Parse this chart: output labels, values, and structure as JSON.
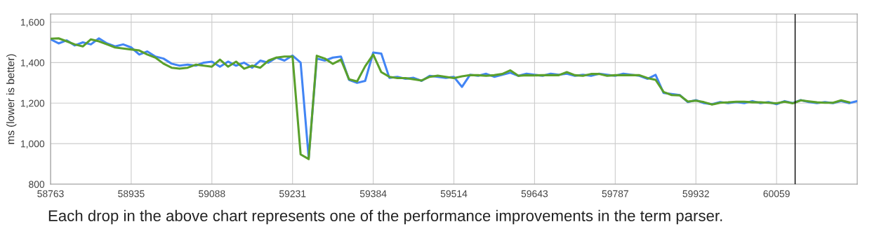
{
  "chart_data": {
    "type": "line",
    "ylabel": "ms (lower is better)",
    "annotations": [
      "Each drop in the above chart represents one of the performance improvements in the term parser."
    ],
    "categories": [
      "58763",
      null,
      null,
      null,
      null,
      null,
      null,
      null,
      null,
      null,
      "58935",
      null,
      null,
      null,
      null,
      null,
      null,
      null,
      null,
      null,
      "59088",
      null,
      null,
      null,
      null,
      null,
      null,
      null,
      null,
      null,
      "59231",
      null,
      null,
      null,
      null,
      null,
      null,
      null,
      null,
      null,
      "59384",
      null,
      null,
      null,
      null,
      null,
      null,
      null,
      null,
      null,
      "59514",
      null,
      null,
      null,
      null,
      null,
      null,
      null,
      null,
      null,
      "59643",
      null,
      null,
      null,
      null,
      null,
      null,
      null,
      null,
      null,
      "59787",
      null,
      null,
      null,
      null,
      null,
      null,
      null,
      null,
      null,
      "59932",
      null,
      null,
      null,
      null,
      null,
      null,
      null,
      null,
      null,
      "60059",
      null,
      null,
      null,
      null,
      null,
      null,
      null,
      null,
      null,
      null
    ],
    "series": [
      {
        "color": "#4285f4",
        "values": [
          1515,
          1495,
          1510,
          1485,
          1500,
          1490,
          1520,
          1495,
          1480,
          1490,
          1475,
          1440,
          1455,
          1430,
          1420,
          1395,
          1385,
          1390,
          1385,
          1400,
          1405,
          1380,
          1405,
          1385,
          1400,
          1375,
          1410,
          1400,
          1425,
          1410,
          1435,
          1400,
          930,
          1420,
          1410,
          1425,
          1430,
          1315,
          1300,
          1310,
          1450,
          1445,
          1325,
          1330,
          1320,
          1325,
          1310,
          1335,
          1330,
          1325,
          1330,
          1280,
          1340,
          1335,
          1345,
          1330,
          1340,
          1350,
          1335,
          1345,
          1340,
          1335,
          1345,
          1340,
          1345,
          1335,
          1340,
          1335,
          1345,
          1340,
          1335,
          1345,
          1340,
          1335,
          1320,
          1340,
          1250,
          1245,
          1240,
          1205,
          1215,
          1200,
          1195,
          1205,
          1200,
          1205,
          1200,
          1210,
          1200,
          1205,
          1195,
          1210,
          1200,
          1215,
          1205,
          1200,
          1205,
          1200,
          1210,
          1200,
          1210
        ]
      },
      {
        "color": "#5aa02c",
        "values": [
          1518,
          1520,
          1505,
          1490,
          1480,
          1515,
          1505,
          1490,
          1475,
          1470,
          1465,
          1460,
          1440,
          1425,
          1395,
          1375,
          1370,
          1375,
          1390,
          1385,
          1380,
          1415,
          1380,
          1405,
          1370,
          1385,
          1375,
          1410,
          1425,
          1430,
          1430,
          947,
          924,
          1434,
          1420,
          1394,
          1415,
          1318,
          1307,
          1382,
          1440,
          1353,
          1330,
          1324,
          1324,
          1318,
          1312,
          1330,
          1336,
          1330,
          1324,
          1332,
          1338,
          1338,
          1335,
          1338,
          1344,
          1362,
          1335,
          1338,
          1337,
          1338,
          1338,
          1338,
          1353,
          1338,
          1335,
          1344,
          1344,
          1335,
          1338,
          1338,
          1338,
          1338,
          1324,
          1315,
          1255,
          1240,
          1238,
          1208,
          1212,
          1205,
          1193,
          1202,
          1204,
          1207,
          1207,
          1204,
          1204,
          1202,
          1199,
          1207,
          1199,
          1214,
          1209,
          1204,
          1202,
          1202,
          1214,
          1204,
          null
        ]
      }
    ],
    "ylim": [
      800,
      1640
    ],
    "yticks": [
      {
        "value": 800,
        "label": "800"
      },
      {
        "value": 1000,
        "label": "1,000"
      },
      {
        "value": 1200,
        "label": "1,200"
      },
      {
        "value": 1400,
        "label": "1,400"
      },
      {
        "value": 1600,
        "label": "1,600"
      }
    ],
    "grid": true,
    "marker": "none",
    "line_style": "solid"
  }
}
